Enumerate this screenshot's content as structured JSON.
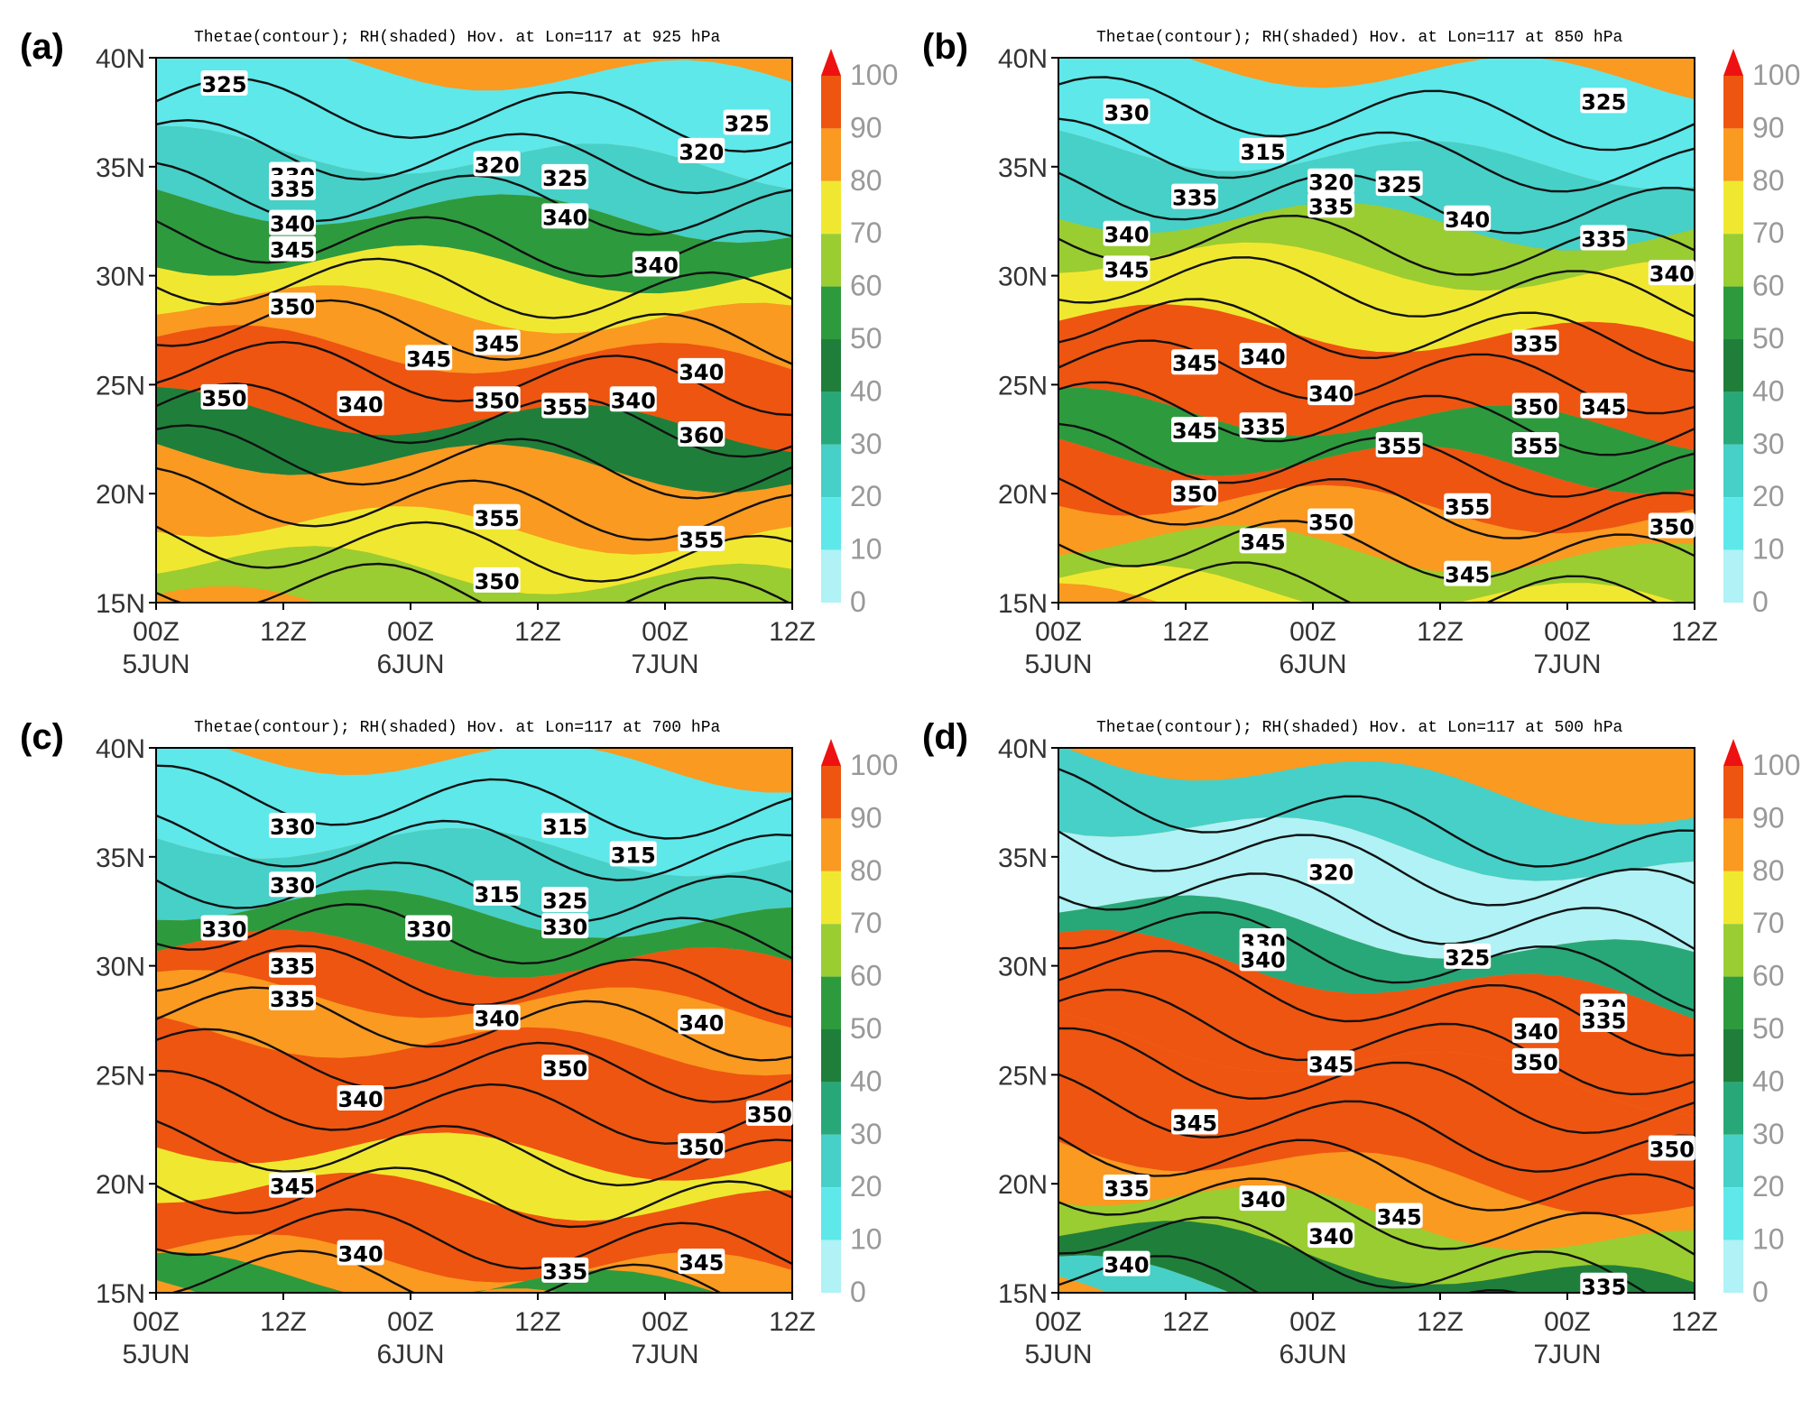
{
  "chart_data": [
    {
      "type": "heatmap",
      "panel_label": "(a)",
      "title": "Thetae(contour); RH(shaded) Hov. at Lon=117 at 925 hPa",
      "x_ticks": [
        "00Z\n5JUN",
        "12Z",
        "00Z\n6JUN",
        "12Z",
        "00Z\n7JUN",
        "12Z"
      ],
      "y_ticks": [
        "15N",
        "20N",
        "25N",
        "30N",
        "35N",
        "40N"
      ],
      "xlim": [
        "00Z 5JUN",
        "12Z 7JUN"
      ],
      "ylim": [
        15,
        40
      ],
      "contour_labels": [
        {
          "text": "325",
          "t": 9,
          "lat": 38.8
        },
        {
          "text": "330",
          "t": 18,
          "lat": 34.6
        },
        {
          "text": "335",
          "t": 18,
          "lat": 34.0
        },
        {
          "text": "340",
          "t": 18,
          "lat": 32.4
        },
        {
          "text": "345",
          "t": 18,
          "lat": 31.2
        },
        {
          "text": "350",
          "t": 18,
          "lat": 28.6
        },
        {
          "text": "320",
          "t": 45,
          "lat": 35.1
        },
        {
          "text": "325",
          "t": 54,
          "lat": 34.5
        },
        {
          "text": "340",
          "t": 54,
          "lat": 32.7
        },
        {
          "text": "340",
          "t": 66,
          "lat": 30.5
        },
        {
          "text": "320",
          "t": 72,
          "lat": 35.7
        },
        {
          "text": "325",
          "t": 78,
          "lat": 37.0
        },
        {
          "text": "345",
          "t": 45,
          "lat": 26.9
        },
        {
          "text": "345",
          "t": 36,
          "lat": 26.2
        },
        {
          "text": "340",
          "t": 72,
          "lat": 25.6
        },
        {
          "text": "350",
          "t": 9,
          "lat": 24.4
        },
        {
          "text": "340",
          "t": 27,
          "lat": 24.1
        },
        {
          "text": "350",
          "t": 45,
          "lat": 24.3
        },
        {
          "text": "355",
          "t": 54,
          "lat": 24.0
        },
        {
          "text": "340",
          "t": 63,
          "lat": 24.3
        },
        {
          "text": "360",
          "t": 72,
          "lat": 22.7
        },
        {
          "text": "355",
          "t": 45,
          "lat": 18.9
        },
        {
          "text": "355",
          "t": 72,
          "lat": 17.9
        },
        {
          "text": "350",
          "t": 45,
          "lat": 16.0
        }
      ]
    },
    {
      "type": "heatmap",
      "panel_label": "(b)",
      "title": "Thetae(contour); RH(shaded) Hov. at Lon=117 at 850 hPa",
      "x_ticks": [
        "00Z\n5JUN",
        "12Z",
        "00Z\n6JUN",
        "12Z",
        "00Z\n7JUN",
        "12Z"
      ],
      "y_ticks": [
        "15N",
        "20N",
        "25N",
        "30N",
        "35N",
        "40N"
      ],
      "xlim": [
        "00Z 5JUN",
        "12Z 7JUN"
      ],
      "ylim": [
        15,
        40
      ],
      "contour_labels": [
        {
          "text": "330",
          "t": 9,
          "lat": 37.5
        },
        {
          "text": "315",
          "t": 27,
          "lat": 35.7
        },
        {
          "text": "320",
          "t": 36,
          "lat": 34.3
        },
        {
          "text": "325",
          "t": 45,
          "lat": 34.2
        },
        {
          "text": "335",
          "t": 18,
          "lat": 33.6
        },
        {
          "text": "335",
          "t": 36,
          "lat": 33.2
        },
        {
          "text": "340",
          "t": 54,
          "lat": 32.6
        },
        {
          "text": "325",
          "t": 72,
          "lat": 38.0
        },
        {
          "text": "335",
          "t": 72,
          "lat": 31.7
        },
        {
          "text": "340",
          "t": 9,
          "lat": 31.9
        },
        {
          "text": "345",
          "t": 9,
          "lat": 30.3
        },
        {
          "text": "340",
          "t": 81,
          "lat": 30.1
        },
        {
          "text": "335",
          "t": 63,
          "lat": 26.9
        },
        {
          "text": "345",
          "t": 18,
          "lat": 26.0
        },
        {
          "text": "340",
          "t": 27,
          "lat": 26.3
        },
        {
          "text": "340",
          "t": 36,
          "lat": 24.6
        },
        {
          "text": "350",
          "t": 63,
          "lat": 24.0
        },
        {
          "text": "345",
          "t": 72,
          "lat": 24.0
        },
        {
          "text": "345",
          "t": 18,
          "lat": 22.9
        },
        {
          "text": "335",
          "t": 27,
          "lat": 23.1
        },
        {
          "text": "355",
          "t": 45,
          "lat": 22.2
        },
        {
          "text": "355",
          "t": 63,
          "lat": 22.2
        },
        {
          "text": "350",
          "t": 18,
          "lat": 20.0
        },
        {
          "text": "355",
          "t": 54,
          "lat": 19.4
        },
        {
          "text": "350",
          "t": 36,
          "lat": 18.7
        },
        {
          "text": "345",
          "t": 27,
          "lat": 17.8
        },
        {
          "text": "350",
          "t": 81,
          "lat": 18.5
        },
        {
          "text": "345",
          "t": 54,
          "lat": 16.3
        }
      ]
    },
    {
      "type": "heatmap",
      "panel_label": "(c)",
      "title": "Thetae(contour); RH(shaded) Hov. at Lon=117 at 700 hPa",
      "x_ticks": [
        "00Z\n5JUN",
        "12Z",
        "00Z\n6JUN",
        "12Z",
        "00Z\n7JUN",
        "12Z"
      ],
      "y_ticks": [
        "15N",
        "20N",
        "25N",
        "30N",
        "35N",
        "40N"
      ],
      "xlim": [
        "00Z 5JUN",
        "12Z 7JUN"
      ],
      "ylim": [
        15,
        40
      ],
      "contour_labels": [
        {
          "text": "330",
          "t": 18,
          "lat": 36.4
        },
        {
          "text": "315",
          "t": 54,
          "lat": 36.4
        },
        {
          "text": "315",
          "t": 63,
          "lat": 35.1
        },
        {
          "text": "330",
          "t": 18,
          "lat": 33.7
        },
        {
          "text": "315",
          "t": 45,
          "lat": 33.3
        },
        {
          "text": "325",
          "t": 54,
          "lat": 33.0
        },
        {
          "text": "330",
          "t": 9,
          "lat": 31.7
        },
        {
          "text": "330",
          "t": 36,
          "lat": 31.7
        },
        {
          "text": "330",
          "t": 54,
          "lat": 31.8
        },
        {
          "text": "335",
          "t": 18,
          "lat": 30.0
        },
        {
          "text": "335",
          "t": 18,
          "lat": 28.5
        },
        {
          "text": "340",
          "t": 45,
          "lat": 27.6
        },
        {
          "text": "340",
          "t": 72,
          "lat": 27.4
        },
        {
          "text": "350",
          "t": 54,
          "lat": 25.3
        },
        {
          "text": "340",
          "t": 27,
          "lat": 23.9
        },
        {
          "text": "350",
          "t": 81,
          "lat": 23.2
        },
        {
          "text": "350",
          "t": 72,
          "lat": 21.7
        },
        {
          "text": "345",
          "t": 18,
          "lat": 19.9
        },
        {
          "text": "340",
          "t": 27,
          "lat": 16.8
        },
        {
          "text": "345",
          "t": 72,
          "lat": 16.4
        },
        {
          "text": "335",
          "t": 54,
          "lat": 16.0
        }
      ]
    },
    {
      "type": "heatmap",
      "panel_label": "(d)",
      "title": "Thetae(contour); RH(shaded) Hov. at Lon=117 at 500 hPa",
      "x_ticks": [
        "00Z\n5JUN",
        "12Z",
        "00Z\n6JUN",
        "12Z",
        "00Z\n7JUN",
        "12Z"
      ],
      "y_ticks": [
        "15N",
        "20N",
        "25N",
        "30N",
        "35N",
        "40N"
      ],
      "xlim": [
        "00Z 5JUN",
        "12Z 7JUN"
      ],
      "ylim": [
        15,
        40
      ],
      "contour_labels": [
        {
          "text": "320",
          "t": 36,
          "lat": 34.3
        },
        {
          "text": "330",
          "t": 27,
          "lat": 31.1
        },
        {
          "text": "340",
          "t": 27,
          "lat": 30.3
        },
        {
          "text": "325",
          "t": 54,
          "lat": 30.4
        },
        {
          "text": "330",
          "t": 72,
          "lat": 28.1
        },
        {
          "text": "335",
          "t": 72,
          "lat": 27.5
        },
        {
          "text": "340",
          "t": 63,
          "lat": 27.0
        },
        {
          "text": "350",
          "t": 63,
          "lat": 25.6
        },
        {
          "text": "345",
          "t": 36,
          "lat": 25.5
        },
        {
          "text": "345",
          "t": 18,
          "lat": 22.8
        },
        {
          "text": "350",
          "t": 81,
          "lat": 21.6
        },
        {
          "text": "335",
          "t": 9,
          "lat": 19.8
        },
        {
          "text": "340",
          "t": 27,
          "lat": 19.3
        },
        {
          "text": "345",
          "t": 45,
          "lat": 18.5
        },
        {
          "text": "340",
          "t": 36,
          "lat": 17.6
        },
        {
          "text": "340",
          "t": 9,
          "lat": 16.3
        },
        {
          "text": "335",
          "t": 72,
          "lat": 15.3
        }
      ]
    }
  ],
  "colorbar": {
    "labels": [
      "100",
      "90",
      "80",
      "70",
      "60",
      "50",
      "40",
      "30",
      "20",
      "10",
      "0"
    ],
    "colors": [
      "#ee5511",
      "#fa9a20",
      "#f0e830",
      "#9acd32",
      "#2e9a3e",
      "#1f7f3a",
      "#28a878",
      "#46d0c8",
      "#5ee8ea",
      "#b0f2f6"
    ]
  }
}
